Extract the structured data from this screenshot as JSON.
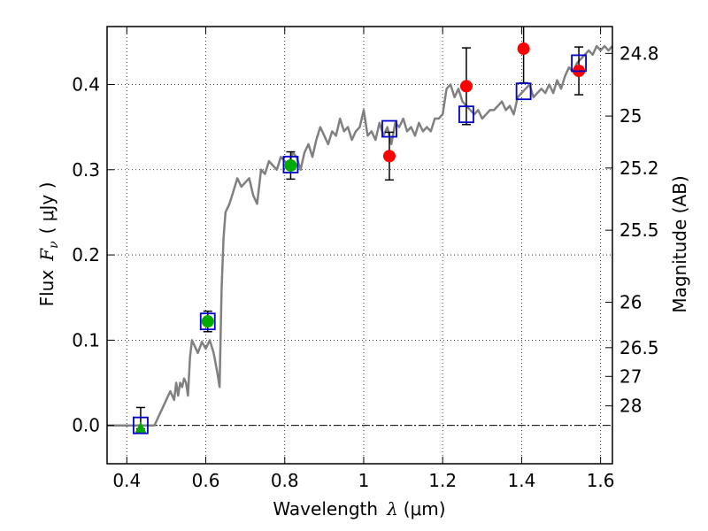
{
  "chart_data": {
    "type": "scatter",
    "title": "",
    "xlabel_prefix": "Wavelength",
    "xlabel_symbol": "λ",
    "xlabel_unit": "(μm)",
    "ylabel_prefix": "Flux",
    "ylabel_symbol": "F",
    "ylabel_sub": "ν",
    "ylabel_unit": "( μJy )",
    "y2label": "Magnitude (AB)",
    "xlim": [
      0.35,
      1.63
    ],
    "ylim": [
      -0.045,
      0.468
    ],
    "grid": true,
    "zero_line": true,
    "x_ticks": [
      0.4,
      0.6,
      0.8,
      1.0,
      1.2,
      1.4,
      1.6
    ],
    "x_tick_labels": [
      "0.4",
      "0.6",
      "0.8",
      "1",
      "1.2",
      "1.4",
      "1.6"
    ],
    "y_ticks": [
      0.0,
      0.1,
      0.2,
      0.3,
      0.4
    ],
    "y_tick_labels": [
      "0.0",
      "0.1",
      "0.2",
      "0.3",
      "0.4"
    ],
    "mag_ticks": [
      {
        "label": "24.8",
        "flux": 0.4365
      },
      {
        "label": "25",
        "flux": 0.363
      },
      {
        "label": "25.2",
        "flux": 0.302
      },
      {
        "label": "25.5",
        "flux": 0.229
      },
      {
        "label": "26",
        "flux": 0.1445
      },
      {
        "label": "26.5",
        "flux": 0.0912
      },
      {
        "label": "27",
        "flux": 0.0575
      },
      {
        "label": "28",
        "flux": 0.0229
      }
    ],
    "model_spectrum": {
      "name": "model SED",
      "color": "#808080",
      "x": [
        0.35,
        0.44,
        0.47,
        0.49,
        0.5,
        0.51,
        0.52,
        0.525,
        0.53,
        0.535,
        0.54,
        0.545,
        0.55,
        0.555,
        0.56,
        0.565,
        0.57,
        0.58,
        0.59,
        0.6,
        0.61,
        0.62,
        0.63,
        0.635,
        0.64,
        0.645,
        0.65,
        0.66,
        0.67,
        0.68,
        0.69,
        0.7,
        0.71,
        0.72,
        0.73,
        0.74,
        0.75,
        0.76,
        0.77,
        0.78,
        0.79,
        0.8,
        0.81,
        0.82,
        0.83,
        0.84,
        0.85,
        0.86,
        0.87,
        0.88,
        0.89,
        0.9,
        0.91,
        0.92,
        0.93,
        0.94,
        0.95,
        0.96,
        0.97,
        0.98,
        0.99,
        1.0,
        1.01,
        1.02,
        1.03,
        1.04,
        1.05,
        1.06,
        1.07,
        1.08,
        1.09,
        1.1,
        1.11,
        1.12,
        1.13,
        1.14,
        1.15,
        1.16,
        1.17,
        1.18,
        1.19,
        1.2,
        1.21,
        1.22,
        1.23,
        1.24,
        1.25,
        1.26,
        1.27,
        1.28,
        1.29,
        1.3,
        1.31,
        1.32,
        1.33,
        1.34,
        1.35,
        1.36,
        1.37,
        1.38,
        1.39,
        1.4,
        1.41,
        1.42,
        1.43,
        1.44,
        1.45,
        1.46,
        1.47,
        1.48,
        1.49,
        1.5,
        1.51,
        1.52,
        1.53,
        1.54,
        1.55,
        1.56,
        1.57,
        1.58,
        1.59,
        1.6,
        1.61,
        1.62,
        1.63
      ],
      "y": [
        0.0,
        0.0,
        0.0,
        0.02,
        0.03,
        0.04,
        0.03,
        0.05,
        0.035,
        0.05,
        0.045,
        0.055,
        0.05,
        0.035,
        0.08,
        0.1,
        0.095,
        0.085,
        0.098,
        0.09,
        0.1,
        0.085,
        0.06,
        0.045,
        0.16,
        0.22,
        0.25,
        0.26,
        0.275,
        0.29,
        0.28,
        0.285,
        0.29,
        0.27,
        0.26,
        0.3,
        0.295,
        0.31,
        0.305,
        0.3,
        0.315,
        0.31,
        0.305,
        0.32,
        0.315,
        0.3,
        0.32,
        0.33,
        0.315,
        0.335,
        0.35,
        0.34,
        0.33,
        0.345,
        0.34,
        0.36,
        0.345,
        0.35,
        0.335,
        0.345,
        0.35,
        0.37,
        0.34,
        0.345,
        0.335,
        0.355,
        0.34,
        0.35,
        0.33,
        0.355,
        0.35,
        0.36,
        0.345,
        0.35,
        0.34,
        0.355,
        0.345,
        0.35,
        0.345,
        0.36,
        0.36,
        0.365,
        0.395,
        0.4,
        0.385,
        0.395,
        0.38,
        0.375,
        0.37,
        0.365,
        0.37,
        0.36,
        0.365,
        0.37,
        0.37,
        0.375,
        0.38,
        0.37,
        0.375,
        0.365,
        0.385,
        0.39,
        0.395,
        0.4,
        0.385,
        0.39,
        0.395,
        0.39,
        0.4,
        0.39,
        0.405,
        0.395,
        0.41,
        0.42,
        0.415,
        0.425,
        0.43,
        0.435,
        0.44,
        0.435,
        0.445,
        0.44,
        0.445,
        0.44,
        0.445
      ]
    },
    "observed_upper_limit": {
      "name": "triangle point",
      "color": "#00aa00",
      "points": [
        {
          "x": 0.435,
          "y": -0.004
        }
      ]
    },
    "observed_green": {
      "name": "green circles",
      "color": "#00aa00",
      "points": [
        {
          "x": 0.605,
          "y": 0.122,
          "err": 0.012
        },
        {
          "x": 0.815,
          "y": 0.305,
          "err": 0.016
        }
      ]
    },
    "observed_red": {
      "name": "red circles",
      "color": "#ff0000",
      "points": [
        {
          "x": 1.065,
          "y": 0.316,
          "err": 0.028
        },
        {
          "x": 1.26,
          "y": 0.398,
          "err": 0.045
        },
        {
          "x": 1.405,
          "y": 0.442,
          "err": 0.04
        },
        {
          "x": 1.545,
          "y": 0.416,
          "err": 0.028
        }
      ]
    },
    "upper_error_point": {
      "x": 0.435,
      "low": -0.004,
      "high": 0.021
    },
    "model_photometry": {
      "name": "open blue squares",
      "color": "#0000cc",
      "points": [
        {
          "x": 0.435,
          "y": 0.0
        },
        {
          "x": 0.605,
          "y": 0.122
        },
        {
          "x": 0.815,
          "y": 0.306
        },
        {
          "x": 1.065,
          "y": 0.348
        },
        {
          "x": 1.26,
          "y": 0.365
        },
        {
          "x": 1.405,
          "y": 0.392
        },
        {
          "x": 1.545,
          "y": 0.425
        }
      ]
    }
  }
}
